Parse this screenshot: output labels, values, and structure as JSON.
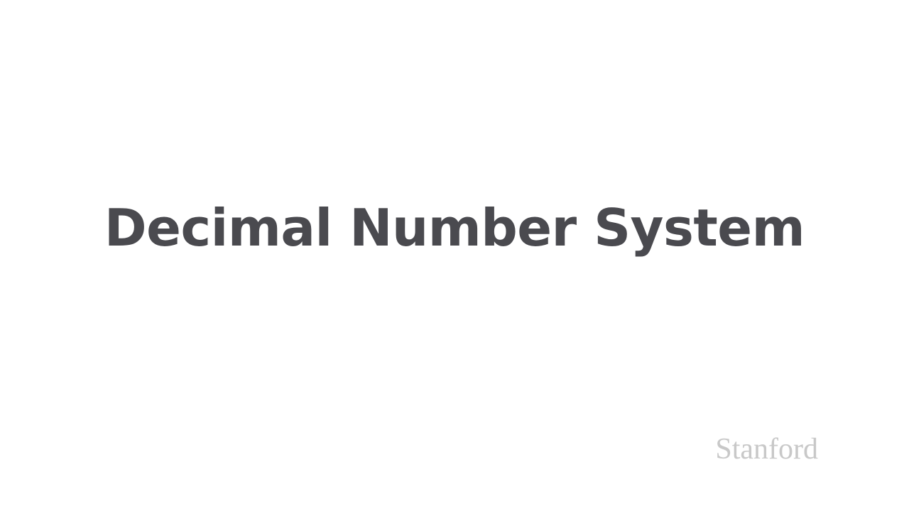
{
  "slide": {
    "title": "Decimal Number System",
    "watermark": "Stanford"
  },
  "colors": {
    "background": "#ffffff",
    "title": "#4a4a4f",
    "watermark": "#c8c8c8"
  }
}
